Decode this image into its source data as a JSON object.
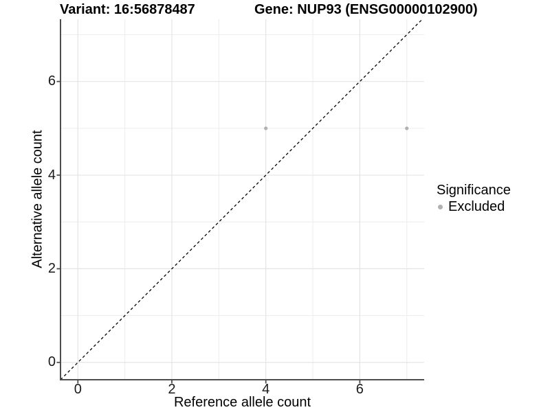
{
  "chart_data": {
    "type": "scatter",
    "title_left": "Variant: 16:56878487",
    "title_right": "Gene: NUP93 (ENSG00000102900)",
    "xlabel": "Reference allele count",
    "ylabel": "Alternative allele count",
    "xlim": [
      -0.37,
      7.37
    ],
    "ylim": [
      -0.37,
      7.33
    ],
    "x_major_ticks": [
      0,
      2,
      4,
      6
    ],
    "y_major_ticks": [
      0,
      2,
      4,
      6
    ],
    "x_minor_ticks": [
      1,
      3,
      5,
      7
    ],
    "y_minor_ticks": [
      1,
      3,
      5,
      7
    ],
    "grid": "major+minor",
    "series": [
      {
        "name": "Excluded",
        "color": "#b1b1b1",
        "points": [
          {
            "x": 4,
            "y": 5
          },
          {
            "x": 7,
            "y": 5
          }
        ]
      }
    ],
    "reference_line": {
      "kind": "identity",
      "slope": 1,
      "intercept": 0,
      "style": "dashed",
      "color": "#000000"
    },
    "legend": {
      "title": "Significance",
      "position": "right",
      "items": [
        {
          "label": "Excluded",
          "color": "#b1b1b1"
        }
      ]
    }
  },
  "colors": {
    "background": "#ffffff",
    "grid_major": "#e4e4e4",
    "grid_minor": "#eeeeee",
    "axis_line": "#4d4d4d",
    "tick_mark": "#4d4d4d",
    "tick_text": "#1a1a1a",
    "title_text": "#000000"
  }
}
